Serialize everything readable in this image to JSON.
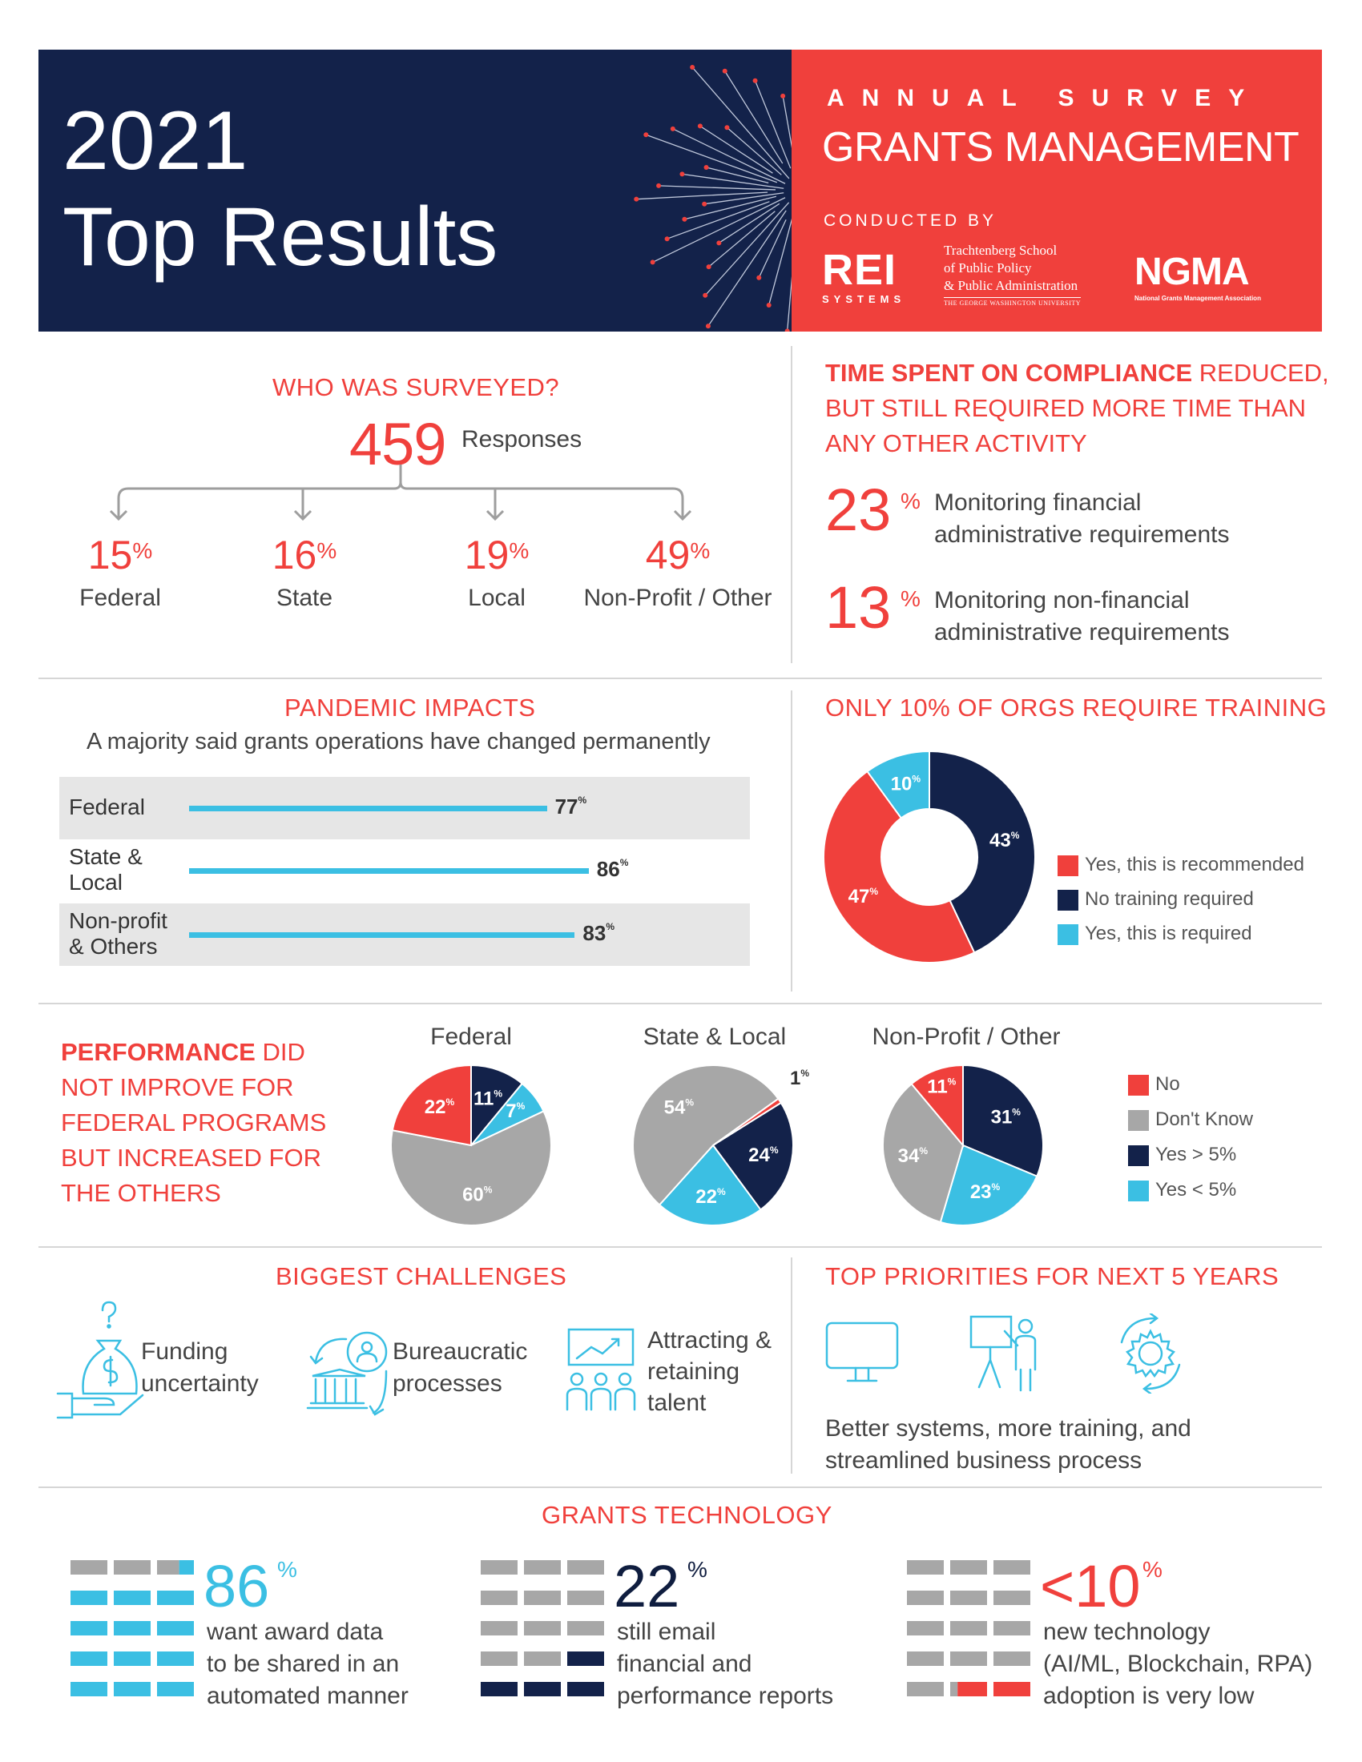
{
  "header": {
    "year": "2021",
    "title": "Top Results",
    "survey_label": "ANNUAL SURVEY",
    "survey_name": "GRANTS MANAGEMENT",
    "conducted_by": "CONDUCTED BY",
    "rei_logo": "REI",
    "rei_sub": "SYSTEMS",
    "gwu_line1": "Trachtenberg School",
    "gwu_line2": "of Public Policy",
    "gwu_line3": "& Public Administration",
    "gwu_line4": "THE GEORGE WASHINGTON UNIVERSITY",
    "ngma_logo": "NGMA",
    "ngma_sub": "National Grants Management Association",
    "colors": {
      "navy": "#13224a",
      "red": "#f0403c",
      "cyan": "#3bbfe3",
      "gray": "#a7a7a7"
    }
  },
  "surveyed": {
    "title": "WHO WAS SURVEYED?",
    "responses_value": "459",
    "responses_label": "Responses",
    "groups": [
      {
        "value": "15",
        "unit": "%",
        "label": "Federal"
      },
      {
        "value": "16",
        "unit": "%",
        "label": "State"
      },
      {
        "value": "19",
        "unit": "%",
        "label": "Local"
      },
      {
        "value": "49",
        "unit": "%",
        "label": "Non-Profit / Other"
      }
    ]
  },
  "compliance": {
    "title_line1_strong": "TIME SPENT ON COMPLIANCE",
    "title_line1_rest": " REDUCED,",
    "title_line2": "BUT STILL REQUIRED MORE TIME THAN",
    "title_line3": "ANY OTHER ACTIVITY",
    "items": [
      {
        "value": "23",
        "unit": "%",
        "line1": "Monitoring financial",
        "line2": "administrative requirements"
      },
      {
        "value": "13",
        "unit": "%",
        "line1": "Monitoring non-financial",
        "line2": "administrative requirements"
      }
    ]
  },
  "pandemic": {
    "title": "PANDEMIC IMPACTS",
    "subtitle": "A majority said grants operations have changed permanently",
    "rows": [
      {
        "line1": "Federal",
        "line2": "",
        "value": 77,
        "label": "77",
        "unit": "%"
      },
      {
        "line1": "State &",
        "line2": "Local",
        "value": 86,
        "label": "86",
        "unit": "%"
      },
      {
        "line1": "Non-profit",
        "line2": "& Others",
        "value": 83,
        "label": "83",
        "unit": "%"
      }
    ]
  },
  "training": {
    "title": "ONLY 10% OF ORGS REQUIRE TRAINING",
    "legend": [
      {
        "label": "Yes, this is recommended",
        "color": "#f0403c"
      },
      {
        "label": "No training required",
        "color": "#13224a"
      },
      {
        "label": "Yes, this is required",
        "color": "#3bbfe3"
      }
    ]
  },
  "performance": {
    "title_strong": "PERFORMANCE",
    "title_line1_rest": " DID",
    "title_line2": "NOT IMPROVE FOR",
    "title_line3": "FEDERAL PROGRAMS",
    "title_line4": "BUT INCREASED FOR",
    "title_line5": "THE OTHERS",
    "legend": [
      {
        "label": "No",
        "color": "#f0403c"
      },
      {
        "label": "Don't Know",
        "color": "#a7a7a7"
      },
      {
        "label": "Yes > 5%",
        "color": "#13224a"
      },
      {
        "label": "Yes < 5%",
        "color": "#3bbfe3"
      }
    ]
  },
  "challenges": {
    "title": "BIGGEST CHALLENGES",
    "items": [
      {
        "line1": "Funding",
        "line2": "uncertainty",
        "line3": ""
      },
      {
        "line1": "Bureaucratic",
        "line2": "processes",
        "line3": ""
      },
      {
        "line1": "Attracting &",
        "line2": "retaining",
        "line3": "talent"
      }
    ]
  },
  "priorities": {
    "title": "TOP PRIORITIES FOR NEXT 5 YEARS",
    "line1": "Better systems, more training, and",
    "line2": "streamlined business process"
  },
  "technology": {
    "title": "GRANTS TECHNOLOGY",
    "items": [
      {
        "value": "86",
        "unit": "%",
        "line1": "want award data",
        "line2": "to be shared in an",
        "line3": "automated manner"
      },
      {
        "value": "22",
        "unit": "%",
        "line1": "still email",
        "line2": "financial and",
        "line3": "performance reports"
      },
      {
        "value": "<10",
        "unit": "%",
        "line1": "new technology",
        "line2": "(AI/ML, Blockchain, RPA)",
        "line3": "adoption is very low"
      }
    ]
  },
  "chart_data": [
    {
      "type": "bar",
      "title": "PANDEMIC IMPACTS",
      "categories": [
        "Federal",
        "State & Local",
        "Non-profit & Others"
      ],
      "values": [
        77,
        86,
        83
      ],
      "ylim": [
        0,
        100
      ]
    },
    {
      "type": "pie",
      "title": "ONLY 10% OF ORGS REQUIRE TRAINING",
      "categories": [
        "Yes, this is recommended",
        "No training required",
        "Yes, this is required"
      ],
      "values": [
        47,
        43,
        10
      ],
      "labels": [
        "47",
        "43",
        "10"
      ],
      "colors": [
        "#f0403c",
        "#13224a",
        "#3bbfe3"
      ],
      "donut": true
    },
    {
      "type": "pie",
      "title": "Federal",
      "categories": [
        "No",
        "Don't Know",
        "Yes > 5%",
        "Yes < 5%"
      ],
      "values": [
        22,
        60,
        11,
        7
      ],
      "labels": [
        "22",
        "60",
        "11",
        "7"
      ]
    },
    {
      "type": "pie",
      "title": "State & Local",
      "categories": [
        "No",
        "Don't Know",
        "Yes > 5%",
        "Yes < 5%"
      ],
      "values": [
        1,
        54,
        24,
        22
      ],
      "labels": [
        "1",
        "54",
        "24",
        "22"
      ]
    },
    {
      "type": "pie",
      "title": "Non-Profit / Other",
      "categories": [
        "No",
        "Don't Know",
        "Yes > 5%",
        "Yes < 5%"
      ],
      "values": [
        11,
        34,
        31,
        23
      ],
      "labels": [
        "11",
        "34",
        "31",
        "23"
      ]
    }
  ]
}
